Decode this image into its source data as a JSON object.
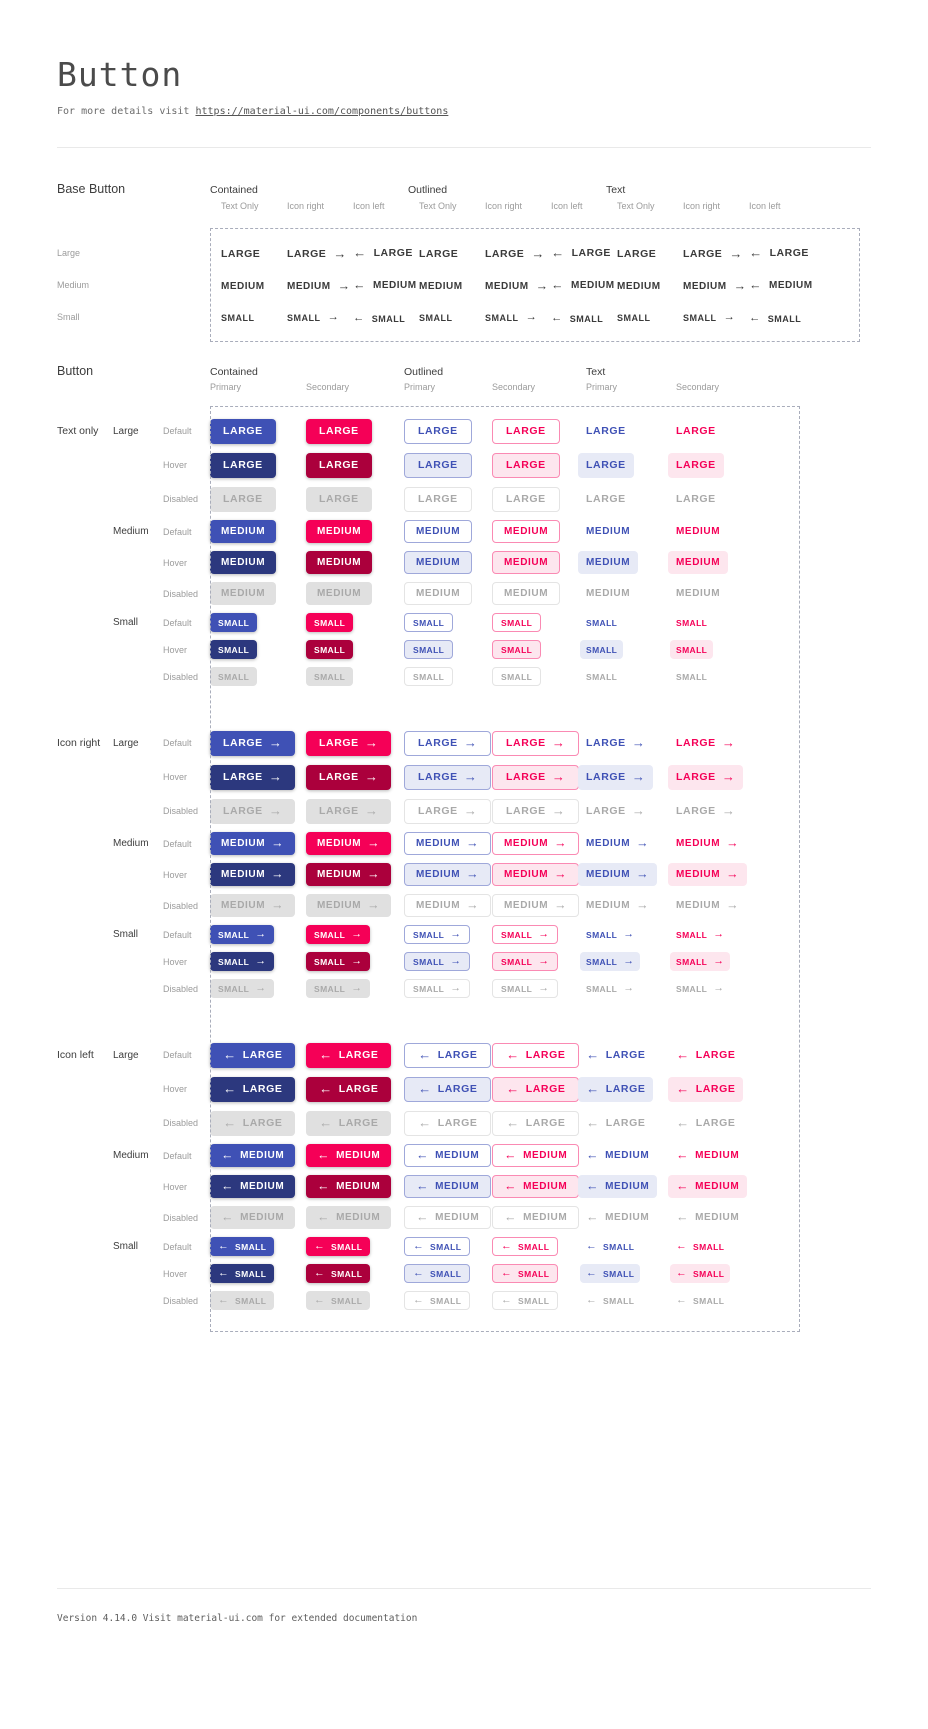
{
  "page": {
    "title": "Button",
    "subtitle_prefix": "For more details visit ",
    "subtitle_link": "https://material-ui.com/components/buttons",
    "footer": "Version 4.14.0  Visit material-ui.com for extended documentation"
  },
  "icons": {
    "arrow_right": "→",
    "arrow_left": "←"
  },
  "colors": {
    "primary": "#3f51b5",
    "primary_hover": "#2c387e",
    "secondary": "#f50057",
    "secondary_hover": "#ab003c",
    "contained_text": "#ffffff",
    "disabled_bg": "#e0e0e0",
    "disabled_text": "#a9a9a9",
    "outlined_primary_border": "#9fa8da",
    "outlined_secondary_border": "#fa8ab3",
    "outlined_disabled_border": "#e4e4e4",
    "primary_tint": "#e7eaf6",
    "secondary_tint": "#fde6ee",
    "base_text": "#3a3a3a"
  },
  "base_section": {
    "title": "Base Button",
    "groups": [
      {
        "label": "Contained",
        "cols": [
          "Text Only",
          "Icon right",
          "Icon left"
        ]
      },
      {
        "label": "Outlined",
        "cols": [
          "Text Only",
          "Icon right",
          "Icon left"
        ]
      },
      {
        "label": "Text",
        "cols": [
          "Text Only",
          "Icon right",
          "Icon left"
        ]
      }
    ],
    "sizes": [
      {
        "label": "Large",
        "text": "LARGE"
      },
      {
        "label": "Medium",
        "text": "MEDIUM"
      },
      {
        "label": "Small",
        "text": "SMALL"
      }
    ],
    "variants": [
      "text-only",
      "icon-right",
      "icon-left"
    ]
  },
  "button_section": {
    "title": "Button",
    "groups": [
      {
        "label": "Contained",
        "cols": [
          "Primary",
          "Secondary"
        ]
      },
      {
        "label": "Outlined",
        "cols": [
          "Primary",
          "Secondary"
        ]
      },
      {
        "label": "Text",
        "cols": [
          "Primary",
          "Secondary"
        ]
      }
    ],
    "columns": [
      {
        "style": "contained",
        "color": "primary"
      },
      {
        "style": "contained",
        "color": "secondary"
      },
      {
        "style": "outlined",
        "color": "primary"
      },
      {
        "style": "outlined",
        "color": "secondary"
      },
      {
        "style": "textstyle",
        "color": "primary"
      },
      {
        "style": "textstyle",
        "color": "secondary"
      }
    ],
    "row_groups": [
      {
        "label": "Text only",
        "variant": "text-only"
      },
      {
        "label": "Icon right",
        "variant": "icon-right"
      },
      {
        "label": "Icon left",
        "variant": "icon-left"
      }
    ],
    "sizes": [
      {
        "label": "Large",
        "text": "LARGE"
      },
      {
        "label": "Medium",
        "text": "MEDIUM"
      },
      {
        "label": "Small",
        "text": "SMALL"
      }
    ],
    "states": [
      "Default",
      "Hover",
      "Disabled"
    ]
  }
}
